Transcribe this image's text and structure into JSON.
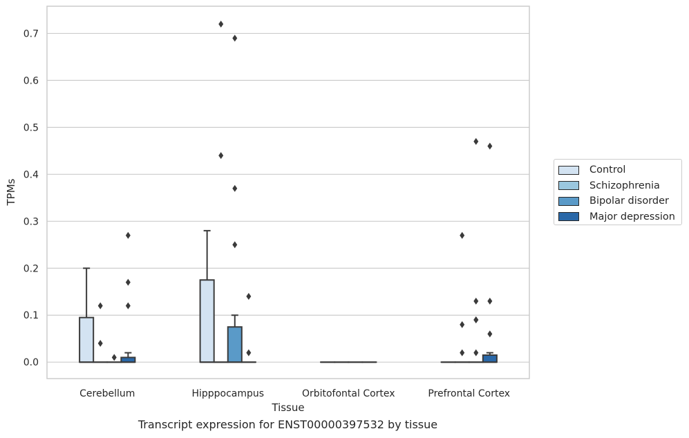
{
  "chart_data": {
    "type": "box",
    "xlabel": "Tissue",
    "ylabel": "TPMs",
    "caption": "Transcript expression for ENST00000397532 by tissue",
    "ylim": [
      -0.035,
      0.758
    ],
    "yticks": [
      0.0,
      0.1,
      0.2,
      0.3,
      0.4,
      0.5,
      0.6,
      0.7
    ],
    "ytick_labels": [
      "0.0",
      "0.1",
      "0.2",
      "0.3",
      "0.4",
      "0.5",
      "0.6",
      "0.7"
    ],
    "grid": true,
    "legend_position": "right",
    "categories": [
      "Cerebellum",
      "Hipppocampus",
      "Orbitofontal Cortex",
      "Prefrontal Cortex"
    ],
    "series": [
      {
        "name": "Control",
        "color": "#d3e3f2",
        "boxes": [
          {
            "q1": 0.0,
            "median": 0.0,
            "q3": 0.095,
            "whisker_low": 0.0,
            "whisker_high": 0.2,
            "outliers": []
          },
          {
            "q1": 0.0,
            "median": 0.0,
            "q3": 0.175,
            "whisker_low": 0.0,
            "whisker_high": 0.28,
            "outliers": []
          },
          {
            "q1": 0.0,
            "median": 0.0,
            "q3": 0.0,
            "whisker_low": 0.0,
            "whisker_high": 0.0,
            "outliers": []
          },
          {
            "q1": 0.0,
            "median": 0.0,
            "q3": 0.0,
            "whisker_low": 0.0,
            "whisker_high": 0.0,
            "outliers": []
          }
        ]
      },
      {
        "name": "Schizophrenia",
        "color": "#9ac7df",
        "boxes": [
          {
            "q1": 0.0,
            "median": 0.0,
            "q3": 0.0,
            "whisker_low": 0.0,
            "whisker_high": 0.0,
            "outliers": [
              0.12,
              0.04
            ]
          },
          {
            "q1": 0.0,
            "median": 0.0,
            "q3": 0.0,
            "whisker_low": 0.0,
            "whisker_high": 0.0,
            "outliers": [
              0.72,
              0.44
            ]
          },
          {
            "q1": 0.0,
            "median": 0.0,
            "q3": 0.0,
            "whisker_low": 0.0,
            "whisker_high": 0.0,
            "outliers": []
          },
          {
            "q1": 0.0,
            "median": 0.0,
            "q3": 0.0,
            "whisker_low": 0.0,
            "whisker_high": 0.0,
            "outliers": [
              0.27,
              0.08,
              0.02
            ]
          }
        ]
      },
      {
        "name": "Bipolar disorder",
        "color": "#5a9ac8",
        "boxes": [
          {
            "q1": 0.0,
            "median": 0.0,
            "q3": 0.0,
            "whisker_low": 0.0,
            "whisker_high": 0.0,
            "outliers": [
              0.01
            ]
          },
          {
            "q1": 0.0,
            "median": 0.0,
            "q3": 0.075,
            "whisker_low": 0.0,
            "whisker_high": 0.1,
            "outliers": [
              0.69,
              0.37,
              0.25
            ]
          },
          {
            "q1": 0.0,
            "median": 0.0,
            "q3": 0.0,
            "whisker_low": 0.0,
            "whisker_high": 0.0,
            "outliers": []
          },
          {
            "q1": 0.0,
            "median": 0.0,
            "q3": 0.0,
            "whisker_low": 0.0,
            "whisker_high": 0.0,
            "outliers": [
              0.13,
              0.09,
              0.47,
              0.09,
              0.02
            ]
          }
        ]
      },
      {
        "name": "Major depression",
        "color": "#2a68a8",
        "boxes": [
          {
            "q1": 0.0,
            "median": 0.0,
            "q3": 0.01,
            "whisker_low": 0.0,
            "whisker_high": 0.02,
            "outliers": [
              0.27,
              0.17,
              0.12
            ]
          },
          {
            "q1": 0.0,
            "median": 0.0,
            "q3": 0.0,
            "whisker_low": 0.0,
            "whisker_high": 0.0,
            "outliers": [
              0.14,
              0.02
            ]
          },
          {
            "q1": 0.0,
            "median": 0.0,
            "q3": 0.0,
            "whisker_low": 0.0,
            "whisker_high": 0.0,
            "outliers": []
          },
          {
            "q1": 0.0,
            "median": 0.0,
            "q3": 0.015,
            "whisker_low": 0.0,
            "whisker_high": 0.02,
            "outliers": [
              0.46,
              0.13,
              0.06
            ]
          }
        ]
      }
    ]
  }
}
